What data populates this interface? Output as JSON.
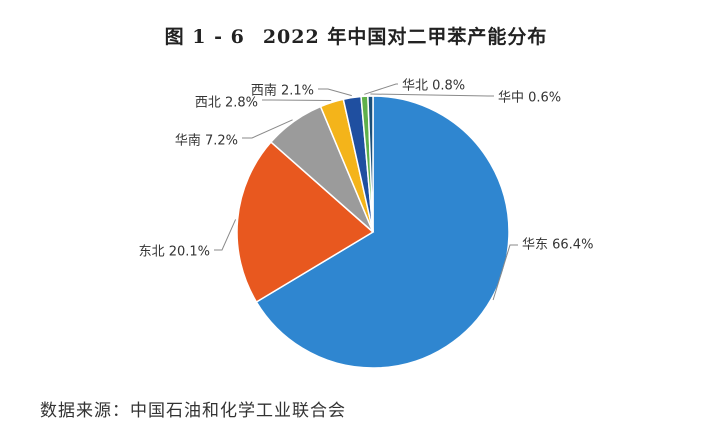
{
  "chart_data": {
    "type": "pie",
    "figure_label": "图 1 - 6",
    "title": "2022 年中国对二甲苯产能分布",
    "slices": [
      {
        "label": "华东 66.4%",
        "name": "华东",
        "value": 66.4,
        "color": "#2f86d0"
      },
      {
        "label": "东北 20.1%",
        "name": "东北",
        "value": 20.1,
        "color": "#e8581f"
      },
      {
        "label": "华南 7.2%",
        "name": "华南",
        "value": 7.2,
        "color": "#9b9b9b"
      },
      {
        "label": "西北 2.8%",
        "name": "西北",
        "value": 2.8,
        "color": "#f4b41a"
      },
      {
        "label": "西南 2.1%",
        "name": "西南",
        "value": 2.1,
        "color": "#1f4fa0"
      },
      {
        "label": "华北 0.8%",
        "name": "华北",
        "value": 0.8,
        "color": "#5fb04a"
      },
      {
        "label": "华中 0.6%",
        "name": "华中",
        "value": 0.6,
        "color": "#1a4f7a"
      }
    ],
    "units": "%"
  },
  "source": "数据来源：中国石油和化学工业联合会"
}
